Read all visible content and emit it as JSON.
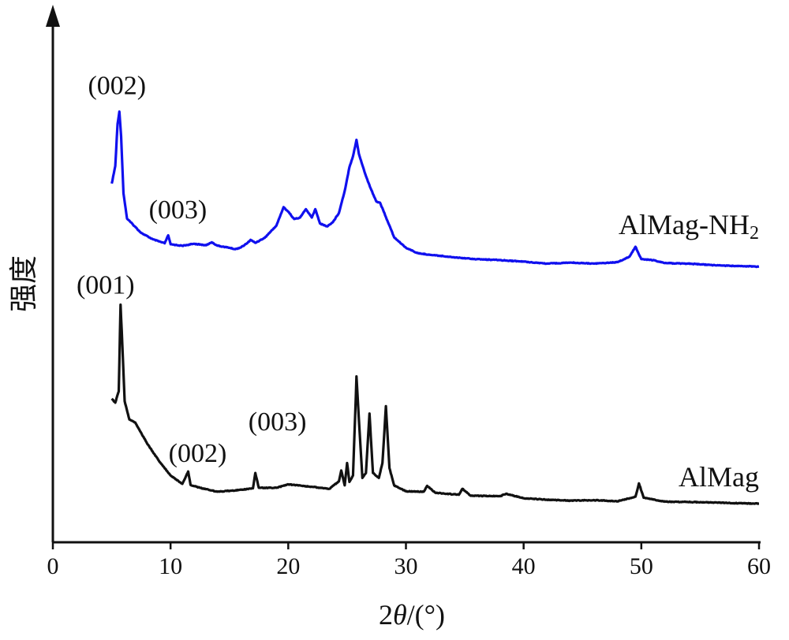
{
  "chart_data": {
    "type": "line",
    "xlabel_prefix": "2",
    "xlabel_theta": "θ",
    "xlabel_suffix": "/(°)",
    "ylabel": "强度",
    "xlim": [
      0,
      60
    ],
    "x_ticks": [
      0,
      10,
      20,
      30,
      40,
      50,
      60
    ],
    "x_tick_labels": [
      "0",
      "10",
      "20",
      "30",
      "40",
      "50",
      "60"
    ],
    "y_scale": "arbitrary units (no ticks)",
    "ylim": [
      0,
      100
    ],
    "grid": false,
    "series": [
      {
        "name": "AlMag-NH",
        "name_subscript": "2",
        "color": "#1010ee",
        "points": [
          [
            5.0,
            72.4
          ],
          [
            5.3,
            76.0
          ],
          [
            5.5,
            84.5
          ],
          [
            5.65,
            87.0
          ],
          [
            5.8,
            82.0
          ],
          [
            6.0,
            70.5
          ],
          [
            6.3,
            65.4
          ],
          [
            6.8,
            64.2
          ],
          [
            7.5,
            62.5
          ],
          [
            8.5,
            61.2
          ],
          [
            9.5,
            60.4
          ],
          [
            9.8,
            62.0
          ],
          [
            10.0,
            60.2
          ],
          [
            11.0,
            59.9
          ],
          [
            12.0,
            60.3
          ],
          [
            13.0,
            60.0
          ],
          [
            13.5,
            60.6
          ],
          [
            14.0,
            59.9
          ],
          [
            15.0,
            59.5
          ],
          [
            15.5,
            59.2
          ],
          [
            16.0,
            59.6
          ],
          [
            16.5,
            60.4
          ],
          [
            16.8,
            61.1
          ],
          [
            17.2,
            60.5
          ],
          [
            18.0,
            61.5
          ],
          [
            19.0,
            64.0
          ],
          [
            19.6,
            67.7
          ],
          [
            20.0,
            66.8
          ],
          [
            20.5,
            65.3
          ],
          [
            21.0,
            65.6
          ],
          [
            21.5,
            67.3
          ],
          [
            22.0,
            65.6
          ],
          [
            22.3,
            67.3
          ],
          [
            22.7,
            64.4
          ],
          [
            23.3,
            63.8
          ],
          [
            23.8,
            64.7
          ],
          [
            24.3,
            66.5
          ],
          [
            24.8,
            71.0
          ],
          [
            25.2,
            75.8
          ],
          [
            25.5,
            78.0
          ],
          [
            25.8,
            81.3
          ],
          [
            26.0,
            78.5
          ],
          [
            26.3,
            76.2
          ],
          [
            26.6,
            74.0
          ],
          [
            27.0,
            71.5
          ],
          [
            27.5,
            68.8
          ],
          [
            27.8,
            68.6
          ],
          [
            28.3,
            65.7
          ],
          [
            29.0,
            61.6
          ],
          [
            30.0,
            59.5
          ],
          [
            31.0,
            58.4
          ],
          [
            32.0,
            58.1
          ],
          [
            34.0,
            57.6
          ],
          [
            36.0,
            57.2
          ],
          [
            38.0,
            57.0
          ],
          [
            40.0,
            56.7
          ],
          [
            42.0,
            56.3
          ],
          [
            44.0,
            56.5
          ],
          [
            46.0,
            56.3
          ],
          [
            48.0,
            56.6
          ],
          [
            49.0,
            57.7
          ],
          [
            49.5,
            59.7
          ],
          [
            50.0,
            57.2
          ],
          [
            51.0,
            57.0
          ],
          [
            52.0,
            56.4
          ],
          [
            54.0,
            56.3
          ],
          [
            56.0,
            56.0
          ],
          [
            58.0,
            55.8
          ],
          [
            60.0,
            55.7
          ]
        ]
      },
      {
        "name": "AlMag",
        "name_subscript": "",
        "color": "#111111",
        "points": [
          [
            5.0,
            29.0
          ],
          [
            5.3,
            28.2
          ],
          [
            5.6,
            30.5
          ],
          [
            5.75,
            48.0
          ],
          [
            5.9,
            40.0
          ],
          [
            6.1,
            28.5
          ],
          [
            6.5,
            24.8
          ],
          [
            7.0,
            24.2
          ],
          [
            8.0,
            20.0
          ],
          [
            9.0,
            16.5
          ],
          [
            10.0,
            13.5
          ],
          [
            11.0,
            11.8
          ],
          [
            11.5,
            14.3
          ],
          [
            11.7,
            11.6
          ],
          [
            12.5,
            11.0
          ],
          [
            14.0,
            10.2
          ],
          [
            16.0,
            10.6
          ],
          [
            17.0,
            10.9
          ],
          [
            17.2,
            14.0
          ],
          [
            17.5,
            11.0
          ],
          [
            19.0,
            11.0
          ],
          [
            20.0,
            11.7
          ],
          [
            22.0,
            11.2
          ],
          [
            23.5,
            10.8
          ],
          [
            24.3,
            12.3
          ],
          [
            24.5,
            14.5
          ],
          [
            24.8,
            11.5
          ],
          [
            25.0,
            16.0
          ],
          [
            25.2,
            12.2
          ],
          [
            25.5,
            13.5
          ],
          [
            25.8,
            33.5
          ],
          [
            26.0,
            25.0
          ],
          [
            26.3,
            13.0
          ],
          [
            26.6,
            14.0
          ],
          [
            26.9,
            26.0
          ],
          [
            27.2,
            14.0
          ],
          [
            27.7,
            13.0
          ],
          [
            28.0,
            16.0
          ],
          [
            28.3,
            27.5
          ],
          [
            28.6,
            15.0
          ],
          [
            29.0,
            11.5
          ],
          [
            30.0,
            10.3
          ],
          [
            31.5,
            10.2
          ],
          [
            31.8,
            11.4
          ],
          [
            32.5,
            10.0
          ],
          [
            34.5,
            9.6
          ],
          [
            34.8,
            10.8
          ],
          [
            35.5,
            9.4
          ],
          [
            38.0,
            9.3
          ],
          [
            38.5,
            9.8
          ],
          [
            40.0,
            8.9
          ],
          [
            42.0,
            8.6
          ],
          [
            44.0,
            8.4
          ],
          [
            46.0,
            8.5
          ],
          [
            48.0,
            8.3
          ],
          [
            49.5,
            9.2
          ],
          [
            49.8,
            11.9
          ],
          [
            50.2,
            9.0
          ],
          [
            52.0,
            8.2
          ],
          [
            55.0,
            8.1
          ],
          [
            58.0,
            7.9
          ],
          [
            60.0,
            7.8
          ]
        ]
      }
    ],
    "peak_annotations": [
      {
        "text": "(002)",
        "series": "AlMag-NH",
        "x": 5.65,
        "y": 87.0
      },
      {
        "text": "(003)",
        "series": "AlMag-NH",
        "x": 6.8,
        "y": 64.2
      },
      {
        "text": "(001)",
        "series": "AlMag",
        "x": 5.75,
        "y": 48.0
      },
      {
        "text": "(002)",
        "series": "AlMag",
        "x": 11.5,
        "y": 14.3
      },
      {
        "text": "(003)",
        "series": "AlMag",
        "x": 17.2,
        "y": 14.0
      }
    ]
  }
}
